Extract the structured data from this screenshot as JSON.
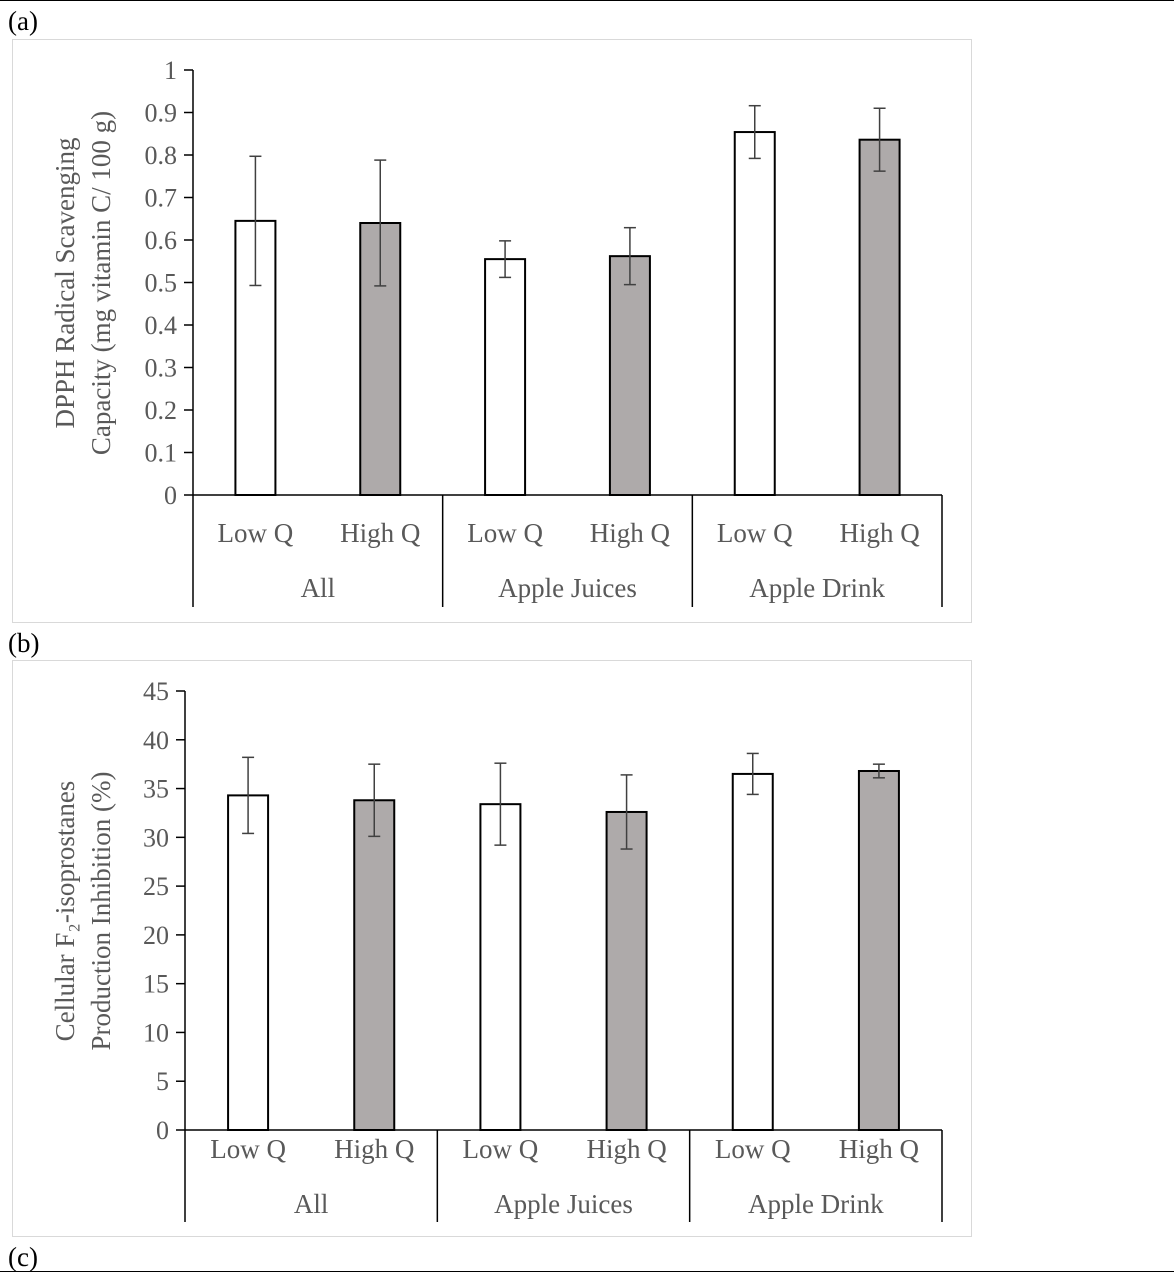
{
  "panel_labels": {
    "a": "(a)",
    "b": "(b)",
    "c": "(c)"
  },
  "colors": {
    "low_fill": "#ffffff",
    "high_fill": "#aeaaaa",
    "axis": "#000000",
    "text": "#595959",
    "error": "#404040"
  },
  "chart_data": [
    {
      "type": "bar",
      "ylabel_lines": [
        "DPPH Radical Scavenging",
        "Capacity (mg vitamin C/ 100 g)"
      ],
      "groups": [
        "All",
        "Apple Juices",
        "Apple Drink"
      ],
      "categories": [
        "Low Q",
        "High Q",
        "Low Q",
        "High Q",
        "Low Q",
        "High Q"
      ],
      "values": [
        0.645,
        0.64,
        0.555,
        0.562,
        0.854,
        0.836
      ],
      "errors": [
        0.152,
        0.148,
        0.043,
        0.067,
        0.062,
        0.074
      ],
      "ylim": [
        0,
        1
      ],
      "yticks": [
        "0",
        "0.1",
        "0.2",
        "0.3",
        "0.4",
        "0.5",
        "0.6",
        "0.7",
        "0.8",
        "0.9",
        "1"
      ],
      "grid": false
    },
    {
      "type": "bar",
      "ylabel_lines": [
        "Cellular F₂-isoprostanes",
        "Production Inhibition (%)"
      ],
      "groups": [
        "All",
        "Apple Juices",
        "Apple Drink"
      ],
      "categories": [
        "Low Q",
        "High Q",
        "Low Q",
        "High Q",
        "Low Q",
        "High Q"
      ],
      "values": [
        34.3,
        33.8,
        33.4,
        32.6,
        36.5,
        36.8
      ],
      "errors": [
        3.9,
        3.7,
        4.2,
        3.8,
        2.1,
        0.7
      ],
      "ylim": [
        0,
        45
      ],
      "yticks": [
        "0",
        "5",
        "10",
        "15",
        "20",
        "25",
        "30",
        "35",
        "40",
        "45"
      ],
      "grid": false
    }
  ]
}
